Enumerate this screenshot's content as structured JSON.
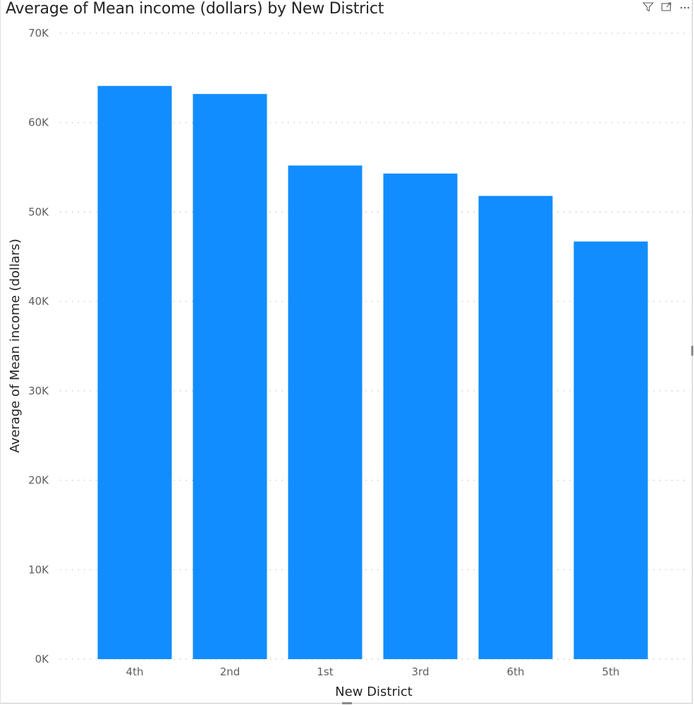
{
  "header": {
    "filter_icon": "filter-icon",
    "focus_icon": "focus-mode-icon",
    "more_icon": "more-options-icon"
  },
  "colors": {
    "bar": "#118DFF",
    "grid": "#c8c6c4",
    "tick": "#605e5c",
    "title": "#252423"
  },
  "chart_data": {
    "type": "bar",
    "title": "Average of Mean income (dollars) by New District",
    "xlabel": "New District",
    "ylabel": "Average of Mean income (dollars)",
    "categories": [
      "4th",
      "2nd",
      "1st",
      "3rd",
      "6th",
      "5th"
    ],
    "values": [
      64100,
      63200,
      55200,
      54300,
      51800,
      46700
    ],
    "ylim": [
      0,
      70000
    ],
    "yticks": [
      0,
      10000,
      20000,
      30000,
      40000,
      50000,
      60000,
      70000
    ],
    "ytick_labels": [
      "0K",
      "10K",
      "20K",
      "30K",
      "40K",
      "50K",
      "60K",
      "70K"
    ],
    "grid": true,
    "legend": "none"
  }
}
